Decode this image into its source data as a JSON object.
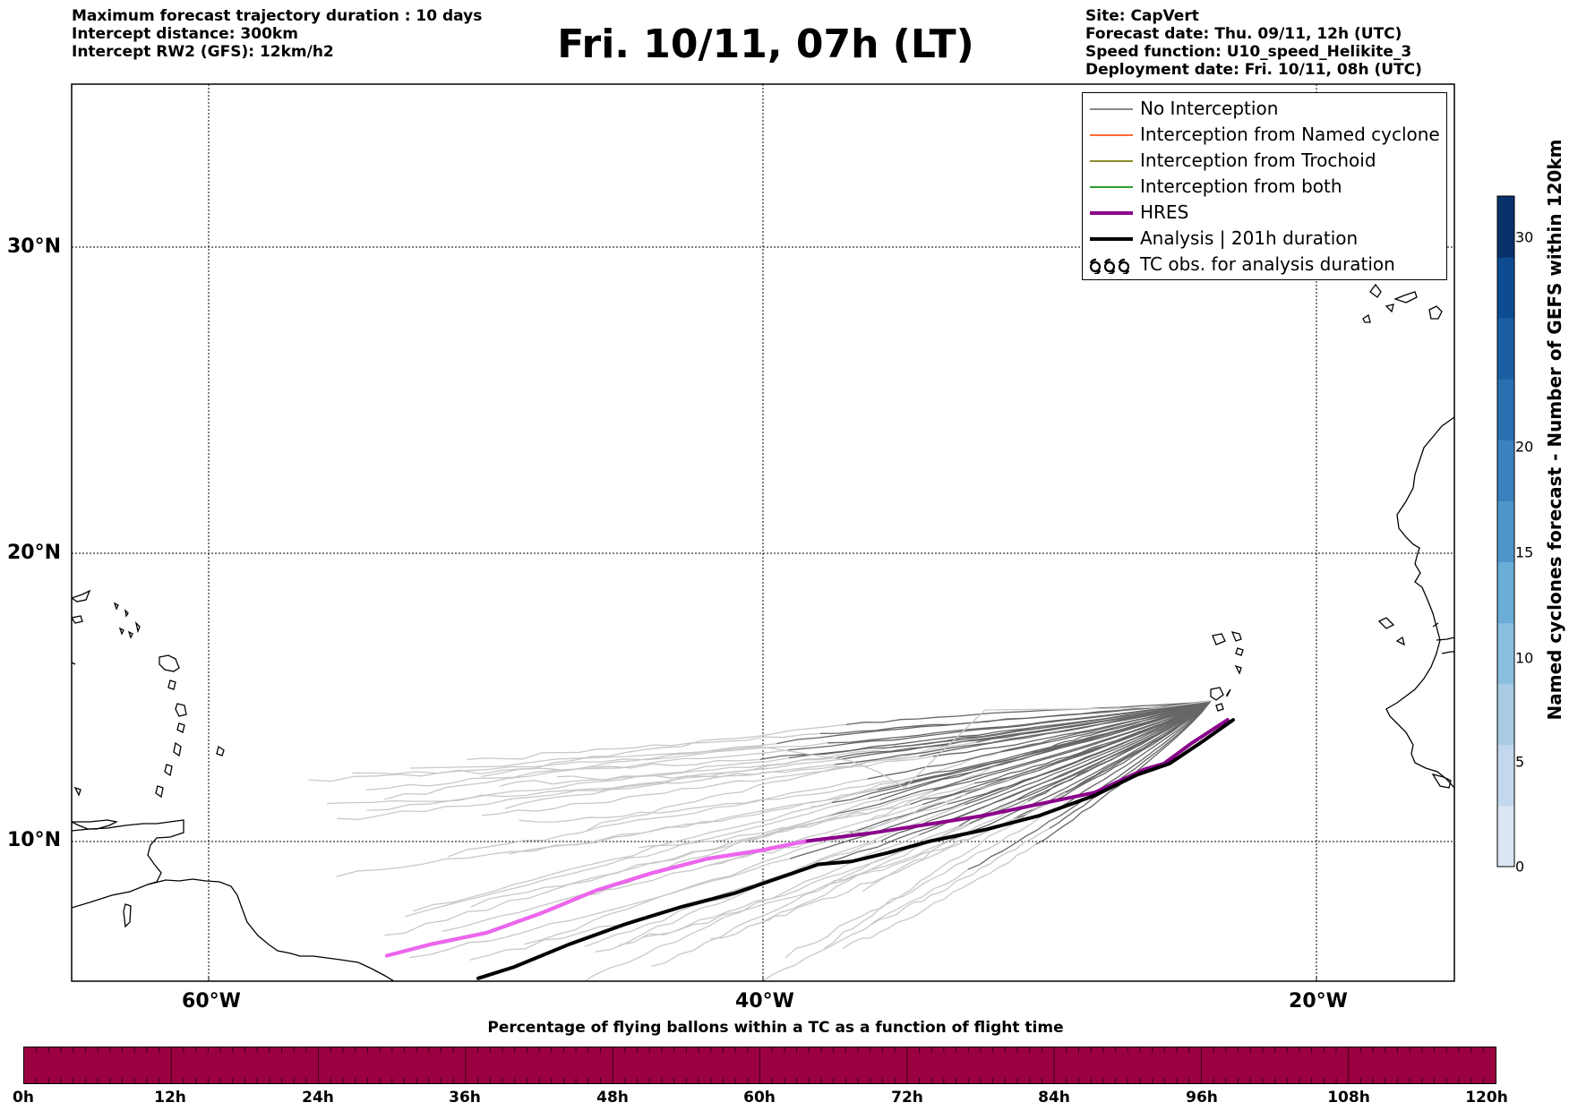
{
  "header_left": {
    "line1": "Maximum forecast trajectory duration : 10 days",
    "line2": "Intercept distance: 300km",
    "line3": "Intercept RW2 (GFS):  12km/h2"
  },
  "title": "Fri. 10/11, 07h (LT)",
  "header_right": {
    "site": "Site: CapVert",
    "forecast_date": "Forecast date: Thu. 09/11, 12h (UTC)",
    "speed_function": "Speed function: U10_speed_Helikite_3",
    "deployment_date": "Deployment date: Fri. 10/11, 08h (UTC)"
  },
  "map": {
    "lat_labels": [
      "30°N",
      "20°N",
      "10°N"
    ],
    "lon_labels": [
      "60°W",
      "40°W",
      "20°W"
    ],
    "extent": {
      "lon_min": -65,
      "lon_max": -15,
      "lat_min": 5.4,
      "lat_max": 34.8
    },
    "gridlines": true
  },
  "legend": {
    "items": [
      {
        "label": "No Interception",
        "color": "#888888",
        "icon": "thin-line"
      },
      {
        "label": "Interception from Named cyclone",
        "color": "#ff6a33",
        "icon": "thin-line"
      },
      {
        "label": "Interception from Trochoid",
        "color": "#8b8b2e",
        "icon": "thin-line"
      },
      {
        "label": "Interception from both",
        "color": "#2ea02e",
        "icon": "thin-line"
      },
      {
        "label": "HRES",
        "color": "#8b008b",
        "icon": "thick-line"
      },
      {
        "label": "Analysis | 201h duration",
        "color": "#000000",
        "icon": "thick-line"
      },
      {
        "label": "TC obs. for analysis duration",
        "color": "#000000",
        "icon": "cyclone-symbols-icon"
      }
    ]
  },
  "colorbar": {
    "title": "Named cyclones forecast - Number of GEFS within 120km",
    "ticks": [
      "0",
      "5",
      "10",
      "15",
      "20",
      "30"
    ],
    "colors": [
      "#dbe6f4",
      "#c4d8ed",
      "#a9cbe4",
      "#8abede",
      "#6aadd6",
      "#4e95c9",
      "#3982bf",
      "#2a6fb0",
      "#1b5ea3",
      "#0e4c91",
      "#08306b"
    ]
  },
  "bottom_bar": {
    "title": "Percentage of flying ballons within a TC as a function of flight time",
    "ticks": [
      "0h",
      "12h",
      "24h",
      "36h",
      "48h",
      "60h",
      "72h",
      "84h",
      "96h",
      "108h",
      "120h"
    ],
    "color": "#9b0040"
  },
  "chart_data": {
    "type": "line",
    "series": [
      {
        "name": "HRES",
        "color": "#8b008b",
        "lon": [
          -23.2,
          -24.5,
          -25.5,
          -26.2,
          -28,
          -30,
          -32,
          -34,
          -36,
          -38.5,
          -40,
          -42,
          -44,
          -46,
          -48,
          -50,
          -52,
          -53.6
        ],
        "lat": [
          14.5,
          13.7,
          13.0,
          12.8,
          12.0,
          11.6,
          11.2,
          10.9,
          10.6,
          10.3,
          10.0,
          9.7,
          9.2,
          8.6,
          7.8,
          7.1,
          6.7,
          6.3
        ]
      },
      {
        "name": "Analysis | 201h duration",
        "color": "#000000",
        "lon": [
          -23.0,
          -24.2,
          -25.3,
          -26.5,
          -28,
          -30,
          -32,
          -34,
          -35.5,
          -36.8,
          -38,
          -39.5,
          -41,
          -43,
          -45,
          -47,
          -49,
          -50.3
        ],
        "lat": [
          14.5,
          13.7,
          13.0,
          12.6,
          11.9,
          11.2,
          10.7,
          10.3,
          9.9,
          9.6,
          9.5,
          9.0,
          8.5,
          8.0,
          7.4,
          6.7,
          5.9,
          5.5
        ]
      }
    ]
  }
}
